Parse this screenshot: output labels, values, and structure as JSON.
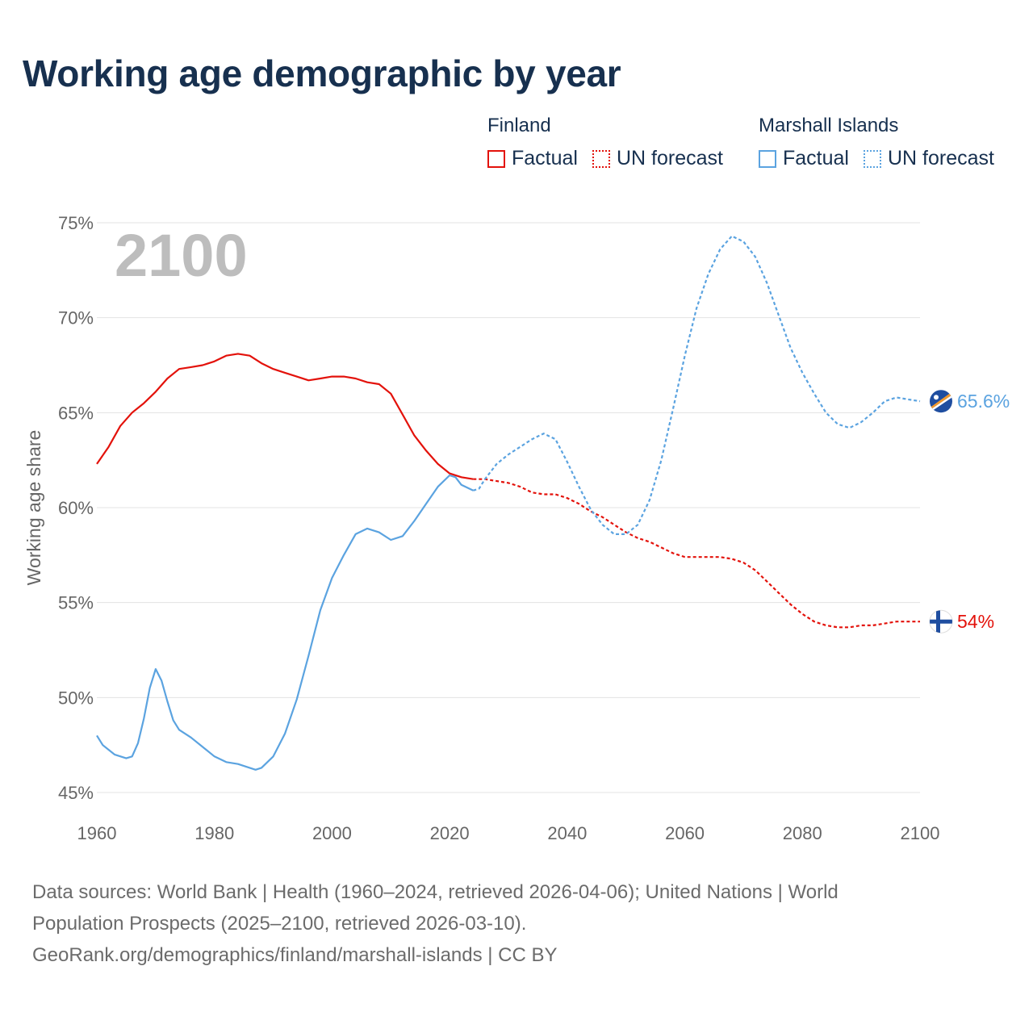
{
  "title": "Working age demographic by year",
  "legend": {
    "groups": [
      {
        "name": "Finland",
        "color": "#e3120b",
        "factual_label": "Factual",
        "forecast_label": "UN forecast"
      },
      {
        "name": "Marshall Islands",
        "color": "#5ba3e0",
        "factual_label": "Factual",
        "forecast_label": "UN forecast"
      }
    ]
  },
  "chart_data": {
    "type": "line",
    "title": "Working age demographic by year",
    "xlabel": "",
    "ylabel": "Working age share",
    "xlim": [
      1960,
      2100
    ],
    "ylim": [
      45,
      75
    ],
    "x_ticks": [
      1960,
      1980,
      2000,
      2020,
      2040,
      2060,
      2080,
      2100
    ],
    "x_tick_labels": [
      "1960",
      "1980",
      "2000",
      "2020",
      "2040",
      "2060",
      "2080",
      "2100"
    ],
    "y_ticks": [
      45,
      50,
      55,
      60,
      65,
      70,
      75
    ],
    "y_tick_labels": [
      "45%",
      "50%",
      "55%",
      "60%",
      "65%",
      "70%",
      "75%"
    ],
    "current_year_label": "2100",
    "forecast_start_year": 2024,
    "series": [
      {
        "name": "Finland",
        "color": "#e3120b",
        "end_label": "54%",
        "flag_icon": "finland-flag-icon",
        "points": [
          [
            1960,
            62.3
          ],
          [
            1962,
            63.2
          ],
          [
            1964,
            64.3
          ],
          [
            1966,
            65.0
          ],
          [
            1968,
            65.5
          ],
          [
            1970,
            66.1
          ],
          [
            1972,
            66.8
          ],
          [
            1974,
            67.3
          ],
          [
            1976,
            67.4
          ],
          [
            1978,
            67.5
          ],
          [
            1980,
            67.7
          ],
          [
            1982,
            68.0
          ],
          [
            1984,
            68.1
          ],
          [
            1986,
            68.0
          ],
          [
            1988,
            67.6
          ],
          [
            1990,
            67.3
          ],
          [
            1992,
            67.1
          ],
          [
            1994,
            66.9
          ],
          [
            1996,
            66.7
          ],
          [
            1998,
            66.8
          ],
          [
            2000,
            66.9
          ],
          [
            2002,
            66.9
          ],
          [
            2004,
            66.8
          ],
          [
            2006,
            66.6
          ],
          [
            2008,
            66.5
          ],
          [
            2010,
            66.0
          ],
          [
            2012,
            64.9
          ],
          [
            2014,
            63.8
          ],
          [
            2016,
            63.0
          ],
          [
            2018,
            62.3
          ],
          [
            2020,
            61.8
          ],
          [
            2022,
            61.6
          ],
          [
            2024,
            61.5
          ],
          [
            2026,
            61.5
          ],
          [
            2028,
            61.4
          ],
          [
            2030,
            61.3
          ],
          [
            2032,
            61.1
          ],
          [
            2034,
            60.8
          ],
          [
            2036,
            60.7
          ],
          [
            2038,
            60.7
          ],
          [
            2040,
            60.5
          ],
          [
            2042,
            60.2
          ],
          [
            2044,
            59.8
          ],
          [
            2046,
            59.5
          ],
          [
            2048,
            59.1
          ],
          [
            2050,
            58.7
          ],
          [
            2052,
            58.4
          ],
          [
            2054,
            58.2
          ],
          [
            2056,
            57.9
          ],
          [
            2058,
            57.6
          ],
          [
            2060,
            57.4
          ],
          [
            2062,
            57.4
          ],
          [
            2064,
            57.4
          ],
          [
            2066,
            57.4
          ],
          [
            2068,
            57.3
          ],
          [
            2070,
            57.1
          ],
          [
            2072,
            56.7
          ],
          [
            2074,
            56.1
          ],
          [
            2076,
            55.5
          ],
          [
            2078,
            54.9
          ],
          [
            2080,
            54.4
          ],
          [
            2082,
            54.0
          ],
          [
            2084,
            53.8
          ],
          [
            2086,
            53.7
          ],
          [
            2088,
            53.7
          ],
          [
            2090,
            53.8
          ],
          [
            2092,
            53.8
          ],
          [
            2094,
            53.9
          ],
          [
            2096,
            54.0
          ],
          [
            2098,
            54.0
          ],
          [
            2100,
            54.0
          ]
        ]
      },
      {
        "name": "Marshall Islands",
        "color": "#5ba3e0",
        "end_label": "65.6%",
        "flag_icon": "marshall-islands-flag-icon",
        "points": [
          [
            1960,
            48.0
          ],
          [
            1961,
            47.5
          ],
          [
            1963,
            47.0
          ],
          [
            1965,
            46.8
          ],
          [
            1966,
            46.9
          ],
          [
            1967,
            47.6
          ],
          [
            1968,
            48.9
          ],
          [
            1969,
            50.5
          ],
          [
            1970,
            51.5
          ],
          [
            1971,
            50.9
          ],
          [
            1972,
            49.8
          ],
          [
            1973,
            48.8
          ],
          [
            1974,
            48.3
          ],
          [
            1976,
            47.9
          ],
          [
            1978,
            47.4
          ],
          [
            1980,
            46.9
          ],
          [
            1982,
            46.6
          ],
          [
            1984,
            46.5
          ],
          [
            1986,
            46.3
          ],
          [
            1987,
            46.2
          ],
          [
            1988,
            46.3
          ],
          [
            1990,
            46.9
          ],
          [
            1992,
            48.1
          ],
          [
            1994,
            49.9
          ],
          [
            1996,
            52.2
          ],
          [
            1998,
            54.6
          ],
          [
            2000,
            56.3
          ],
          [
            2002,
            57.5
          ],
          [
            2004,
            58.6
          ],
          [
            2006,
            58.9
          ],
          [
            2008,
            58.7
          ],
          [
            2010,
            58.3
          ],
          [
            2012,
            58.5
          ],
          [
            2014,
            59.3
          ],
          [
            2016,
            60.2
          ],
          [
            2018,
            61.1
          ],
          [
            2020,
            61.7
          ],
          [
            2021,
            61.6
          ],
          [
            2022,
            61.2
          ],
          [
            2024,
            60.9
          ],
          [
            2025,
            61.0
          ],
          [
            2026,
            61.5
          ],
          [
            2028,
            62.3
          ],
          [
            2030,
            62.8
          ],
          [
            2032,
            63.2
          ],
          [
            2034,
            63.6
          ],
          [
            2036,
            63.9
          ],
          [
            2038,
            63.6
          ],
          [
            2040,
            62.4
          ],
          [
            2042,
            61.1
          ],
          [
            2044,
            59.9
          ],
          [
            2046,
            59.1
          ],
          [
            2048,
            58.6
          ],
          [
            2050,
            58.6
          ],
          [
            2052,
            59.1
          ],
          [
            2054,
            60.4
          ],
          [
            2056,
            62.5
          ],
          [
            2058,
            65.2
          ],
          [
            2060,
            68.0
          ],
          [
            2062,
            70.5
          ],
          [
            2064,
            72.3
          ],
          [
            2066,
            73.6
          ],
          [
            2068,
            74.3
          ],
          [
            2070,
            74.0
          ],
          [
            2072,
            73.2
          ],
          [
            2074,
            71.8
          ],
          [
            2076,
            70.1
          ],
          [
            2078,
            68.4
          ],
          [
            2080,
            67.1
          ],
          [
            2082,
            66.0
          ],
          [
            2084,
            65.0
          ],
          [
            2086,
            64.4
          ],
          [
            2088,
            64.2
          ],
          [
            2090,
            64.5
          ],
          [
            2092,
            65.0
          ],
          [
            2094,
            65.6
          ],
          [
            2096,
            65.8
          ],
          [
            2098,
            65.7
          ],
          [
            2100,
            65.6
          ]
        ]
      }
    ]
  },
  "footer": {
    "line1": "Data sources: World Bank | Health (1960–2024, retrieved 2026-04-06); United Nations | World",
    "line2": "Population Prospects (2025–2100, retrieved 2026-03-10).",
    "line3": "GeoRank.org/demographics/finland/marshall-islands | CC BY"
  }
}
